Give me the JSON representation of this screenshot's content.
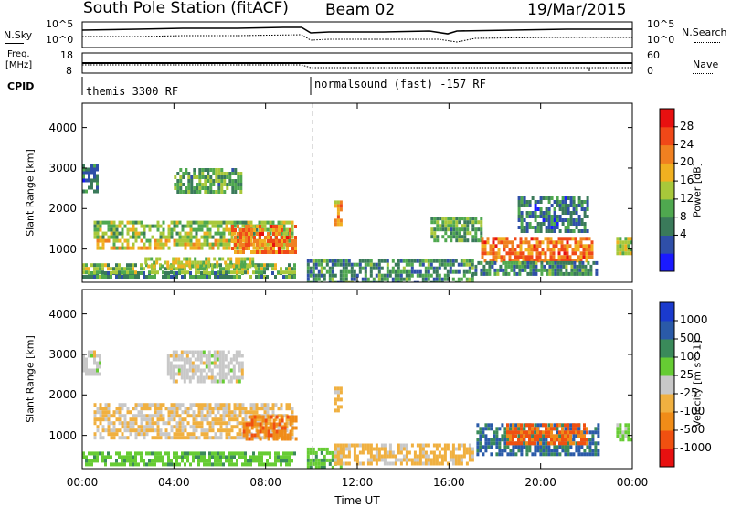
{
  "header": {
    "station": "South Pole Station (fitACF)",
    "beam": "Beam 02",
    "date": "19/Mar/2015"
  },
  "top_panels": {
    "nsky_label": "N.Sky",
    "nsearch_label": "N.Search",
    "nsky_ticks": [
      "10^5",
      "10^0"
    ],
    "nsearch_ticks": [
      "10^5",
      "10^0"
    ],
    "freq_label_1": "Freq.",
    "freq_label_2": "[MHz]",
    "freq_ticks": [
      "18",
      "8"
    ],
    "nave_label": "Nave",
    "nave_ticks": [
      "60",
      "0"
    ],
    "cpid_label": "CPID",
    "cpid_segments": [
      "themis 3300 RF",
      "normalsound (fast) -157 RF"
    ]
  },
  "colors": {
    "power_scale": [
      "#1a1aff",
      "#2f4fa8",
      "#3a7a5a",
      "#4fa84f",
      "#a8c83a",
      "#f0b020",
      "#f08020",
      "#f04818",
      "#e81010"
    ],
    "velocity_scale": [
      "#e81010",
      "#f05010",
      "#f08c18",
      "#f0b040",
      "#c8c8c8",
      "#66cc33",
      "#3a8a5a",
      "#2a5aa8",
      "#1a3acd"
    ],
    "ground_scatter": "#b4b4b4"
  },
  "chart_data": [
    {
      "type": "heatmap",
      "name": "power",
      "xlabel": "",
      "ylabel": "Slant Range [km]",
      "xlim": [
        0,
        24
      ],
      "ylim": [
        180,
        4600
      ],
      "yticks": [
        "4000",
        "3000",
        "2000",
        "1000"
      ],
      "colorbar_label": "Power [dB]",
      "colorbar_ticks": [
        "28",
        "24",
        "20",
        "16",
        "12",
        "8",
        "4"
      ],
      "colorbar_range": [
        0,
        32
      ],
      "regions": [
        {
          "t0": 0.0,
          "t1": 9.3,
          "r0": 300,
          "r1": 450,
          "value": 10
        },
        {
          "t0": 0.0,
          "t1": 9.3,
          "r0": 450,
          "r1": 650,
          "value": 14
        },
        {
          "t0": 2.6,
          "t1": 7.6,
          "r0": 600,
          "r1": 800,
          "value": 16
        },
        {
          "t0": 0.5,
          "t1": 9.0,
          "r0": 1000,
          "r1": 1250,
          "value": 18
        },
        {
          "t0": 0.5,
          "t1": 9.2,
          "r0": 1250,
          "r1": 1700,
          "value": 14
        },
        {
          "t0": 6.5,
          "t1": 9.3,
          "r0": 900,
          "r1": 1600,
          "value": 24
        },
        {
          "t0": 4.0,
          "t1": 6.9,
          "r0": 2400,
          "r1": 3000,
          "value": 12
        },
        {
          "t0": 0.0,
          "t1": 0.6,
          "r0": 2400,
          "r1": 3100,
          "value": 8
        },
        {
          "t0": 9.8,
          "t1": 17.0,
          "r0": 200,
          "r1": 750,
          "value": 10
        },
        {
          "t0": 11.0,
          "t1": 11.3,
          "r0": 1600,
          "r1": 2200,
          "value": 22
        },
        {
          "t0": 15.2,
          "t1": 17.4,
          "r0": 1200,
          "r1": 1800,
          "value": 12
        },
        {
          "t0": 17.4,
          "t1": 22.2,
          "r0": 700,
          "r1": 1300,
          "value": 24
        },
        {
          "t0": 17.0,
          "t1": 22.5,
          "r0": 400,
          "r1": 700,
          "value": 10
        },
        {
          "t0": 19.0,
          "t1": 22.0,
          "r0": 1400,
          "r1": 2300,
          "value": 8
        },
        {
          "t0": 23.3,
          "t1": 24.0,
          "r0": 900,
          "r1": 1300,
          "value": 16
        }
      ]
    },
    {
      "type": "heatmap",
      "name": "velocity",
      "xlabel": "Time UT",
      "ylabel": "Slant Range [km]",
      "xlim": [
        0,
        24
      ],
      "ylim": [
        180,
        4600
      ],
      "xticks": [
        "00:00",
        "04:00",
        "08:00",
        "12:00",
        "16:00",
        "20:00",
        "00:00"
      ],
      "yticks": [
        "4000",
        "3000",
        "2000",
        "1000"
      ],
      "colorbar_label": "Velocity [m s^-1]",
      "colorbar_ticks": [
        "1000",
        "500",
        "100",
        "25",
        "-25",
        "-100",
        "-500",
        "-1000"
      ],
      "colorbar_range": [
        -1200,
        1200
      ],
      "regions": [
        {
          "t0": 0.0,
          "t1": 9.3,
          "r0": 300,
          "r1": 600,
          "value": 300
        },
        {
          "t0": 0.5,
          "t1": 9.2,
          "r0": 900,
          "r1": 1800,
          "value": -150
        },
        {
          "t0": 7.0,
          "t1": 9.3,
          "r0": 900,
          "r1": 1500,
          "value": -600
        },
        {
          "t0": 3.7,
          "t1": 7.0,
          "r0": 2300,
          "r1": 3100,
          "value": 0
        },
        {
          "t0": 0.0,
          "t1": 0.8,
          "r0": 2500,
          "r1": 3100,
          "value": 0
        },
        {
          "t0": 9.8,
          "t1": 11.3,
          "r0": 200,
          "r1": 700,
          "value": 300
        },
        {
          "t0": 11.0,
          "t1": 17.0,
          "r0": 300,
          "r1": 800,
          "value": -200
        },
        {
          "t0": 11.0,
          "t1": 11.3,
          "r0": 1600,
          "r1": 2200,
          "value": -200
        },
        {
          "t0": 17.2,
          "t1": 22.5,
          "r0": 500,
          "r1": 1300,
          "value": 700
        },
        {
          "t0": 18.5,
          "t1": 22.0,
          "r0": 800,
          "r1": 1300,
          "value": -700
        },
        {
          "t0": 23.3,
          "t1": 24.0,
          "r0": 900,
          "r1": 1300,
          "value": 200
        }
      ]
    }
  ]
}
